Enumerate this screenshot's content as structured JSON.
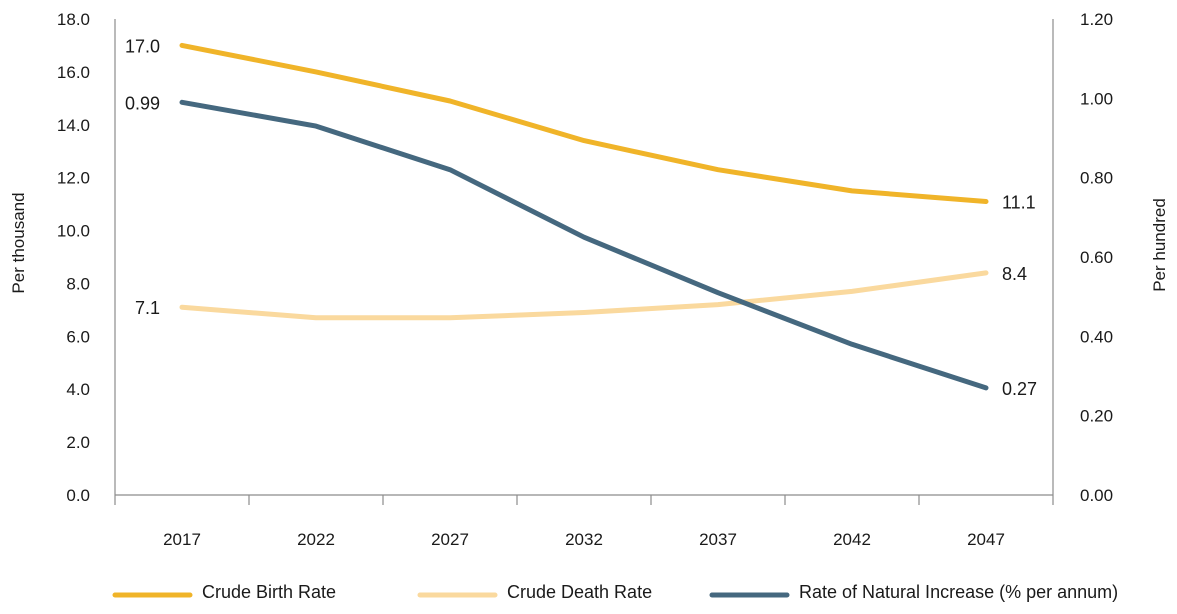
{
  "chart_data": {
    "type": "line",
    "categories": [
      "2017",
      "2022",
      "2027",
      "2032",
      "2037",
      "2042",
      "2047"
    ],
    "y_left": {
      "label": "Per thousand",
      "range": [
        0,
        18
      ],
      "ticks": [
        "0.0",
        "2.0",
        "4.0",
        "6.0",
        "8.0",
        "10.0",
        "12.0",
        "14.0",
        "16.0",
        "18.0"
      ]
    },
    "y_right": {
      "label": "Per hundred",
      "range": [
        0,
        1.2
      ],
      "ticks": [
        "0.00",
        "0.20",
        "0.40",
        "0.60",
        "0.80",
        "1.00",
        "1.20"
      ]
    },
    "grid": false,
    "legend_position": "bottom",
    "series": [
      {
        "name": "Crude Birth Rate",
        "axis": "left",
        "color": "#F0B429",
        "values": [
          17.0,
          16.0,
          14.9,
          13.4,
          12.3,
          11.5,
          11.1
        ],
        "labels": [
          {
            "index": 0,
            "text": "17.0"
          },
          {
            "index": 6,
            "text": "11.1"
          }
        ]
      },
      {
        "name": "Crude Death Rate",
        "axis": "left",
        "color": "#FAD99E",
        "values": [
          7.1,
          6.7,
          6.7,
          6.9,
          7.2,
          7.7,
          8.4
        ],
        "labels": [
          {
            "index": 0,
            "text": "7.1"
          },
          {
            "index": 6,
            "text": "8.4"
          }
        ]
      },
      {
        "name": "Rate of Natural Increase (% per annum)",
        "axis": "right",
        "color": "#45687F",
        "values": [
          0.99,
          0.93,
          0.82,
          0.65,
          0.51,
          0.38,
          0.27
        ],
        "labels": [
          {
            "index": 0,
            "text": "0.99"
          },
          {
            "index": 6,
            "text": "0.27"
          }
        ]
      }
    ]
  }
}
